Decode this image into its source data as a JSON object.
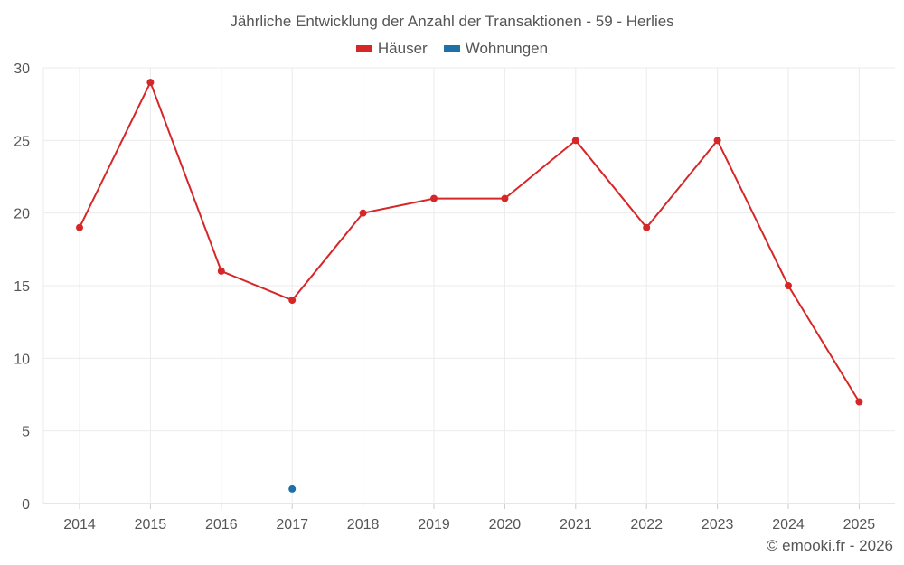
{
  "chart_data": {
    "type": "line",
    "title": "Jährliche Entwicklung der Anzahl der Transaktionen - 59 - Herlies",
    "categories": [
      "2014",
      "2015",
      "2016",
      "2017",
      "2018",
      "2019",
      "2020",
      "2021",
      "2022",
      "2023",
      "2024",
      "2025"
    ],
    "series": [
      {
        "name": "Häuser",
        "color": "#d62728",
        "values": [
          19,
          29,
          16,
          14,
          20,
          21,
          21,
          25,
          19,
          25,
          15,
          7
        ]
      },
      {
        "name": "Wohnungen",
        "color": "#1f6fa8",
        "values": [
          null,
          null,
          null,
          1,
          null,
          null,
          null,
          null,
          null,
          null,
          null,
          null
        ]
      }
    ],
    "ylim": [
      0,
      30
    ],
    "yticks": [
      "0",
      "5",
      "10",
      "15",
      "20",
      "25",
      "30"
    ],
    "grid": true,
    "legend": "top-center"
  },
  "credit": "© emooki.fr - 2026"
}
